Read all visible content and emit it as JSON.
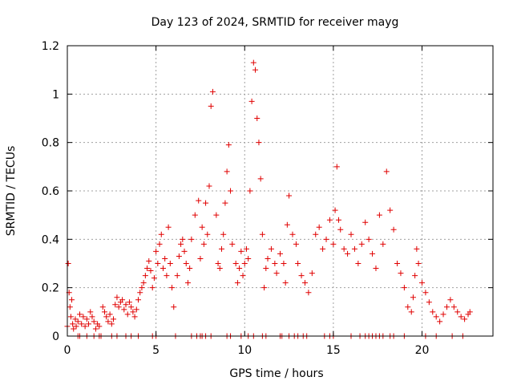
{
  "chart_data": {
    "type": "scatter",
    "title": "Day 123 of 2024, SRMTID for receiver mayg",
    "xlabel": "GPS time / hours",
    "ylabel": "SRMTID / TECUs",
    "xlim": [
      0,
      24
    ],
    "ylim": [
      0,
      1.2
    ],
    "xticks": [
      0,
      5,
      10,
      15,
      20
    ],
    "xtick_labels": [
      "0",
      "5",
      "10",
      "15",
      "20"
    ],
    "yticks": [
      0,
      0.2,
      0.4,
      0.6,
      0.8,
      1.0,
      1.2
    ],
    "ytick_labels": [
      "0",
      "0.2",
      "0.4",
      "0.6",
      "0.8",
      "1",
      "1.2"
    ],
    "grid": true,
    "marker": "+",
    "series": [
      {
        "name": "SRMTID",
        "color": "#e00000",
        "x": [
          0.0,
          0.05,
          0.1,
          0.15,
          0.2,
          0.25,
          0.3,
          0.35,
          0.45,
          0.5,
          0.6,
          0.7,
          0.8,
          0.9,
          1.0,
          1.1,
          1.2,
          1.3,
          1.4,
          1.5,
          1.6,
          1.7,
          1.8,
          2.0,
          2.1,
          2.2,
          2.3,
          2.4,
          2.5,
          2.6,
          2.7,
          2.8,
          2.9,
          3.0,
          3.1,
          3.2,
          3.3,
          3.4,
          3.5,
          3.6,
          3.7,
          3.8,
          3.9,
          4.0,
          4.1,
          4.2,
          4.3,
          4.4,
          4.5,
          4.6,
          4.7,
          4.8,
          4.9,
          5.0,
          5.1,
          5.2,
          5.3,
          5.4,
          5.5,
          5.6,
          5.7,
          5.8,
          5.9,
          6.0,
          6.2,
          6.3,
          6.4,
          6.5,
          6.6,
          6.7,
          6.8,
          6.9,
          7.0,
          7.2,
          7.4,
          7.5,
          7.6,
          7.7,
          7.8,
          7.9,
          8.0,
          8.1,
          8.2,
          8.4,
          8.5,
          8.6,
          8.7,
          8.8,
          8.9,
          9.0,
          9.1,
          9.2,
          9.3,
          9.5,
          9.6,
          9.7,
          9.8,
          9.9,
          10.0,
          10.1,
          10.2,
          10.3,
          10.4,
          10.5,
          10.6,
          10.7,
          10.8,
          10.9,
          11.0,
          11.1,
          11.2,
          11.3,
          11.5,
          11.7,
          11.8,
          12.0,
          12.2,
          12.3,
          12.4,
          12.5,
          12.7,
          12.9,
          13.0,
          13.2,
          13.4,
          13.6,
          13.8,
          14.0,
          14.2,
          14.4,
          14.6,
          14.8,
          15.0,
          15.1,
          15.2,
          15.3,
          15.4,
          15.6,
          15.8,
          16.0,
          16.2,
          16.4,
          16.6,
          16.8,
          17.0,
          17.2,
          17.4,
          17.6,
          17.8,
          18.0,
          18.2,
          18.4,
          18.6,
          18.8,
          19.0,
          19.2,
          19.4,
          19.5,
          19.6,
          19.7,
          19.8,
          20.0,
          20.2,
          20.4,
          20.6,
          20.8,
          21.0,
          21.2,
          21.4,
          21.6,
          21.8,
          22.0,
          22.2,
          22.4,
          22.6,
          22.7
        ],
        "y": [
          0.04,
          0.3,
          0.18,
          0.12,
          0.08,
          0.15,
          0.05,
          0.03,
          0.07,
          0.04,
          0.06,
          0.09,
          0.05,
          0.08,
          0.04,
          0.07,
          0.05,
          0.1,
          0.08,
          0.06,
          0.03,
          0.05,
          0.04,
          0.12,
          0.1,
          0.08,
          0.06,
          0.09,
          0.05,
          0.07,
          0.13,
          0.16,
          0.12,
          0.14,
          0.15,
          0.11,
          0.13,
          0.09,
          0.14,
          0.12,
          0.1,
          0.08,
          0.11,
          0.15,
          0.18,
          0.2,
          0.22,
          0.25,
          0.28,
          0.31,
          0.27,
          0.2,
          0.24,
          0.35,
          0.3,
          0.38,
          0.42,
          0.28,
          0.32,
          0.25,
          0.45,
          0.3,
          0.2,
          0.12,
          0.25,
          0.33,
          0.38,
          0.4,
          0.35,
          0.3,
          0.22,
          0.28,
          0.4,
          0.5,
          0.56,
          0.32,
          0.45,
          0.38,
          0.55,
          0.42,
          0.62,
          0.95,
          1.01,
          0.5,
          0.3,
          0.28,
          0.36,
          0.42,
          0.55,
          0.68,
          0.79,
          0.6,
          0.38,
          0.3,
          0.22,
          0.28,
          0.35,
          0.25,
          0.3,
          0.36,
          0.32,
          0.6,
          0.97,
          1.13,
          1.1,
          0.9,
          0.8,
          0.65,
          0.42,
          0.2,
          0.28,
          0.32,
          0.36,
          0.3,
          0.26,
          0.34,
          0.3,
          0.22,
          0.46,
          0.58,
          0.42,
          0.38,
          0.3,
          0.25,
          0.22,
          0.18,
          0.26,
          0.42,
          0.45,
          0.36,
          0.4,
          0.48,
          0.38,
          0.52,
          0.7,
          0.48,
          0.44,
          0.36,
          0.34,
          0.42,
          0.36,
          0.3,
          0.38,
          0.47,
          0.4,
          0.34,
          0.28,
          0.5,
          0.38,
          0.68,
          0.52,
          0.44,
          0.3,
          0.26,
          0.2,
          0.12,
          0.1,
          0.16,
          0.25,
          0.36,
          0.3,
          0.22,
          0.18,
          0.14,
          0.1,
          0.08,
          0.06,
          0.09,
          0.12,
          0.15,
          0.12,
          0.1,
          0.08,
          0.07,
          0.09,
          0.1
        ],
        "baseline_x": [
          0.6,
          0.7,
          1.1,
          1.5,
          1.8,
          1.9,
          2.5,
          2.8,
          3.3,
          3.6,
          4.0,
          4.8,
          5.0,
          6.1,
          7.0,
          7.3,
          7.5,
          7.6,
          7.8,
          8.1,
          9.0,
          9.2,
          9.8,
          10.2,
          10.5,
          11.0,
          11.2,
          12.0,
          12.1,
          12.5,
          12.8,
          13.0,
          13.3,
          13.5,
          14.5,
          14.8,
          15.0,
          16.0,
          16.5,
          16.8,
          17.0,
          17.2,
          17.4,
          17.6,
          17.8,
          18.2,
          18.4,
          19.0,
          20.2,
          20.8,
          21.7,
          22.3
        ]
      }
    ]
  }
}
